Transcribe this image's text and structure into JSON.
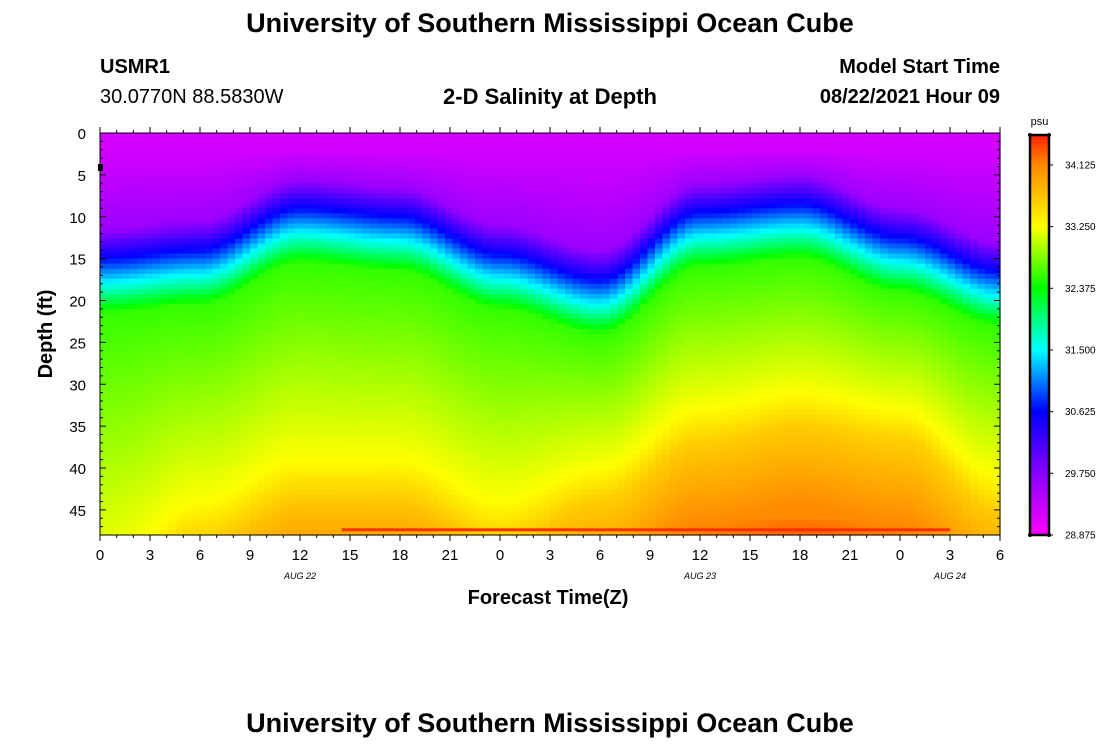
{
  "header": {
    "title": "University of Southern Mississippi Ocean Cube",
    "station_id": "USMR1",
    "station_coords": "30.0770N  88.5830W",
    "plot_title": "2-D Salinity at Depth",
    "model_start_label": "Model Start Time",
    "model_start_value": "08/22/2021 Hour 09"
  },
  "footer": {
    "title": "University of Southern Mississippi Ocean Cube"
  },
  "colors": {
    "palette": [
      "#ff00ff",
      "#8800ff",
      "#0000ff",
      "#00ffff",
      "#00ff00",
      "#ffff00",
      "#ff8800",
      "#ff2200"
    ]
  },
  "chart_data": {
    "type": "heatmap",
    "title": "2-D Salinity at Depth",
    "xlabel": "Forecast Time(Z)",
    "ylabel": "Depth (ft)",
    "x_tick_labels": [
      "0",
      "3",
      "6",
      "9",
      "12",
      "15",
      "18",
      "21",
      "0",
      "3",
      "6",
      "9",
      "12",
      "15",
      "18",
      "21",
      "0",
      "3",
      "6"
    ],
    "date_labels": [
      {
        "text": "AUG  22",
        "at_tick_index": 4
      },
      {
        "text": "AUG  23",
        "at_tick_index": 12
      },
      {
        "text": "AUG  24",
        "at_tick_index": 17
      }
    ],
    "x_range_hours": [
      0,
      54
    ],
    "y_tick_labels": [
      "0",
      "5",
      "10",
      "15",
      "20",
      "25",
      "30",
      "35",
      "40",
      "45"
    ],
    "ylim_ft": [
      0,
      48
    ],
    "colorbar": {
      "unit": "psu",
      "min": 28.875,
      "max": 34.55,
      "tick_labels": [
        "34.125",
        "33.250",
        "32.375",
        "31.500",
        "30.625",
        "29.750",
        "28.875"
      ]
    },
    "halocline_depth_ft": {
      "hours": [
        0,
        6,
        12,
        18,
        24,
        30,
        36,
        42,
        48,
        54
      ],
      "values": [
        17.5,
        16.5,
        11.5,
        12.5,
        17,
        20,
        12,
        11,
        15,
        19
      ]
    },
    "deep_isoline_depth_ft": {
      "hours": [
        0,
        6,
        12,
        18,
        24,
        30,
        36,
        42,
        48,
        54
      ],
      "values": [
        52,
        44,
        39,
        39,
        44,
        40,
        33,
        31,
        33,
        41
      ]
    },
    "surface_salinity_psu": 29.2,
    "bottom_salinity_psu": 34.1
  }
}
